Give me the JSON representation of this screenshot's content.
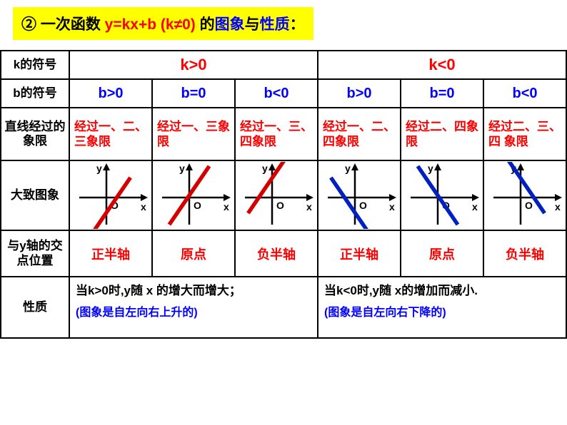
{
  "title": {
    "circ": "②",
    "p1": " 一次函数 ",
    "eq": "y=kx+b (k≠0)",
    "p2": " 的",
    "img": "图象",
    "p3": "与",
    "prop": "性质",
    "p4": "："
  },
  "row_labels": {
    "k": "k的符号",
    "b": "b的符号",
    "quadrant": "直线经过的象限",
    "graph": "大致图象",
    "intercept": "与y轴的交点位置",
    "property": "性质"
  },
  "k_headers": {
    "pos": "k>0",
    "neg": "k<0"
  },
  "b_headers": [
    "b>0",
    "b=0",
    "b<0",
    "b>0",
    "b=0",
    "b<0"
  ],
  "quadrants": [
    "经过一、二、三象限",
    "经过一、三象限",
    "经过一、三、四象限",
    "经过一、二、四象限",
    "经过二、四象限",
    "经过二、三、四 象限"
  ],
  "intercepts": [
    "正半轴",
    "原点",
    "负半轴",
    "正半轴",
    "原点",
    "负半轴"
  ],
  "properties": {
    "pos_main": "当k>0时,y随 x 的增大而增大；",
    "pos_sub": "(图象是自左向右上升的)",
    "neg_main": "当k<0时,y随 x的增加而减小.",
    "neg_sub": "(图象是自左向右下降的)"
  },
  "graphs": [
    {
      "slope": "pos",
      "b": "pos",
      "color": "#d40000"
    },
    {
      "slope": "pos",
      "b": "zero",
      "color": "#d40000"
    },
    {
      "slope": "pos",
      "b": "neg",
      "color": "#d40000"
    },
    {
      "slope": "neg",
      "b": "pos",
      "color": "#0020c0"
    },
    {
      "slope": "neg",
      "b": "zero",
      "color": "#0020c0"
    },
    {
      "slope": "neg",
      "b": "neg",
      "color": "#0020c0"
    }
  ],
  "axis_labels": {
    "x": "x",
    "y": "y",
    "o": "O"
  },
  "colors": {
    "title_bg": "#ffff00",
    "red": "#ff0000",
    "blue": "#0000ff",
    "line_red": "#d40000",
    "line_blue": "#0020c0",
    "black": "#000000"
  }
}
